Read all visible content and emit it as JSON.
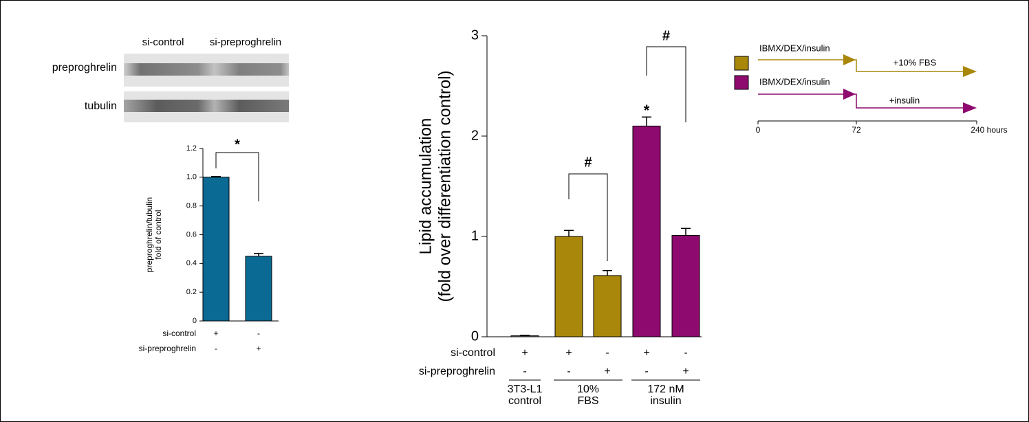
{
  "blot": {
    "lanes": [
      "si-control",
      "si-preproghrelin"
    ],
    "rows": [
      "preproghrelin",
      "tubulin"
    ]
  },
  "chart_data": [
    {
      "type": "bar",
      "ylabel": [
        "preproghrelin/tubulin",
        "fold of control"
      ],
      "values": [
        1.0,
        0.45
      ],
      "errors": [
        0.005,
        0.02
      ],
      "colors": [
        "#0b6a94",
        "#0b6a94"
      ],
      "ylim": [
        0,
        1.2
      ],
      "yticks": [
        0,
        0.2,
        0.4,
        0.6,
        0.8,
        {
          "value": 1,
          "label": "1.0"
        },
        1.2
      ],
      "rows": [
        {
          "label": "si-control",
          "signs": [
            "+",
            "-"
          ]
        },
        {
          "label": "si-preproghrelin",
          "signs": [
            "-",
            "+"
          ]
        }
      ],
      "annotations": [
        "*"
      ]
    },
    {
      "type": "bar",
      "ylabel": [
        "Lipid accumulation",
        "(fold over differentiation control)"
      ],
      "values": [
        0.01,
        1.0,
        0.61,
        2.1,
        1.01
      ],
      "errors": [
        0.005,
        0.06,
        0.05,
        0.09,
        0.07
      ],
      "colors": [
        "#777777",
        "#a8870a",
        "#a8870a",
        "#8e0a6f",
        "#8e0a6f"
      ],
      "ylim": [
        0,
        3
      ],
      "yticks": [
        0,
        1,
        2,
        3
      ],
      "rows": [
        {
          "label": "si-control",
          "signs": [
            "+",
            "+",
            "-",
            "+",
            "-"
          ]
        },
        {
          "label": "si-preproghrelin",
          "signs": [
            "-",
            "-",
            "+",
            "-",
            "+"
          ]
        }
      ],
      "groups": [
        [
          "3T3-L1",
          "control"
        ],
        [
          "10%",
          "FBS"
        ],
        [
          "172 nM",
          "insulin"
        ]
      ],
      "annotations": [
        "#",
        "#",
        "*"
      ]
    }
  ],
  "timeline": {
    "protocols": [
      {
        "label": "IBMX/DEX/insulin",
        "then": "+10% FBS",
        "color": "#a8870a"
      },
      {
        "label": "IBMX/DEX/insulin",
        "then": "+insulin",
        "color": "#8e0a6f"
      }
    ],
    "axis": [
      "0",
      "72",
      "240 hours"
    ]
  }
}
